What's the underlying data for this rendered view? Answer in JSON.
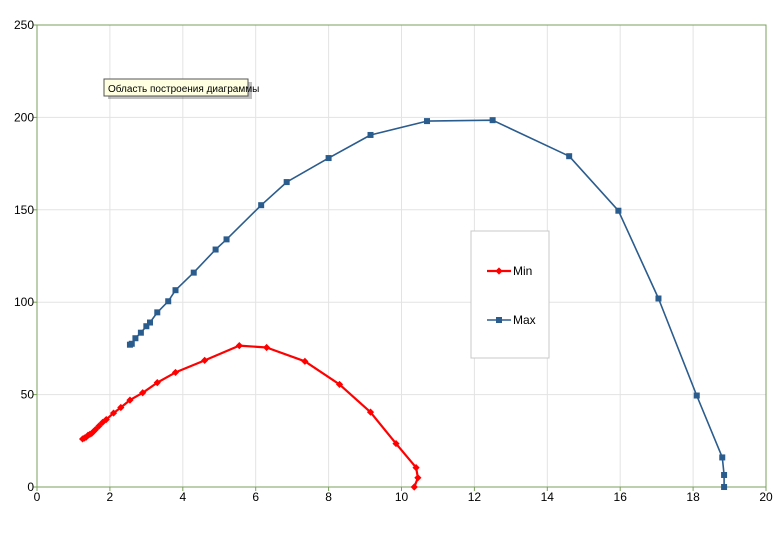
{
  "chart_data": {
    "type": "line",
    "title": "",
    "xlabel": "",
    "ylabel": "",
    "xlim": [
      0,
      20
    ],
    "ylim": [
      0,
      250
    ],
    "x_ticks": [
      0,
      2,
      4,
      6,
      8,
      10,
      12,
      14,
      16,
      18,
      20
    ],
    "y_ticks": [
      0,
      50,
      100,
      150,
      200,
      250
    ],
    "grid": true,
    "legend_position": "right-middle",
    "tooltip": "Область построения диаграммы",
    "series": [
      {
        "name": "Min",
        "color": "#ff0000",
        "marker": "diamond",
        "points": [
          [
            1.25,
            26
          ],
          [
            1.3,
            26.5
          ],
          [
            1.35,
            27
          ],
          [
            1.4,
            28
          ],
          [
            1.45,
            28.5
          ],
          [
            1.5,
            29
          ],
          [
            1.55,
            30
          ],
          [
            1.6,
            31
          ],
          [
            1.7,
            33
          ],
          [
            1.8,
            35
          ],
          [
            1.9,
            36.5
          ],
          [
            2.1,
            40
          ],
          [
            2.3,
            43
          ],
          [
            2.55,
            47
          ],
          [
            2.9,
            51
          ],
          [
            3.3,
            56.5
          ],
          [
            3.8,
            62
          ],
          [
            4.6,
            68.5
          ],
          [
            5.55,
            76.5
          ],
          [
            6.3,
            75.5
          ],
          [
            7.35,
            68
          ],
          [
            8.3,
            55.5
          ],
          [
            9.15,
            40.5
          ],
          [
            9.85,
            23.5
          ],
          [
            10.4,
            10.5
          ],
          [
            10.45,
            5
          ],
          [
            10.35,
            0
          ]
        ]
      },
      {
        "name": "Max",
        "color": "#2b5c8e",
        "marker": "square",
        "points": [
          [
            2.55,
            77
          ],
          [
            2.6,
            77.5
          ],
          [
            2.7,
            80.5
          ],
          [
            2.85,
            83.5
          ],
          [
            3.0,
            87
          ],
          [
            3.1,
            89
          ],
          [
            3.3,
            94.5
          ],
          [
            3.6,
            100.5
          ],
          [
            3.8,
            106.5
          ],
          [
            4.3,
            116
          ],
          [
            4.9,
            128.5
          ],
          [
            5.2,
            134
          ],
          [
            6.15,
            152.5
          ],
          [
            6.85,
            165
          ],
          [
            8.0,
            178
          ],
          [
            9.15,
            190.5
          ],
          [
            10.7,
            198
          ],
          [
            12.5,
            198.5
          ],
          [
            14.6,
            179
          ],
          [
            15.95,
            149.5
          ],
          [
            17.05,
            102
          ],
          [
            18.1,
            49.5
          ],
          [
            18.8,
            16
          ],
          [
            18.85,
            6.5
          ],
          [
            18.85,
            0
          ]
        ]
      }
    ]
  }
}
